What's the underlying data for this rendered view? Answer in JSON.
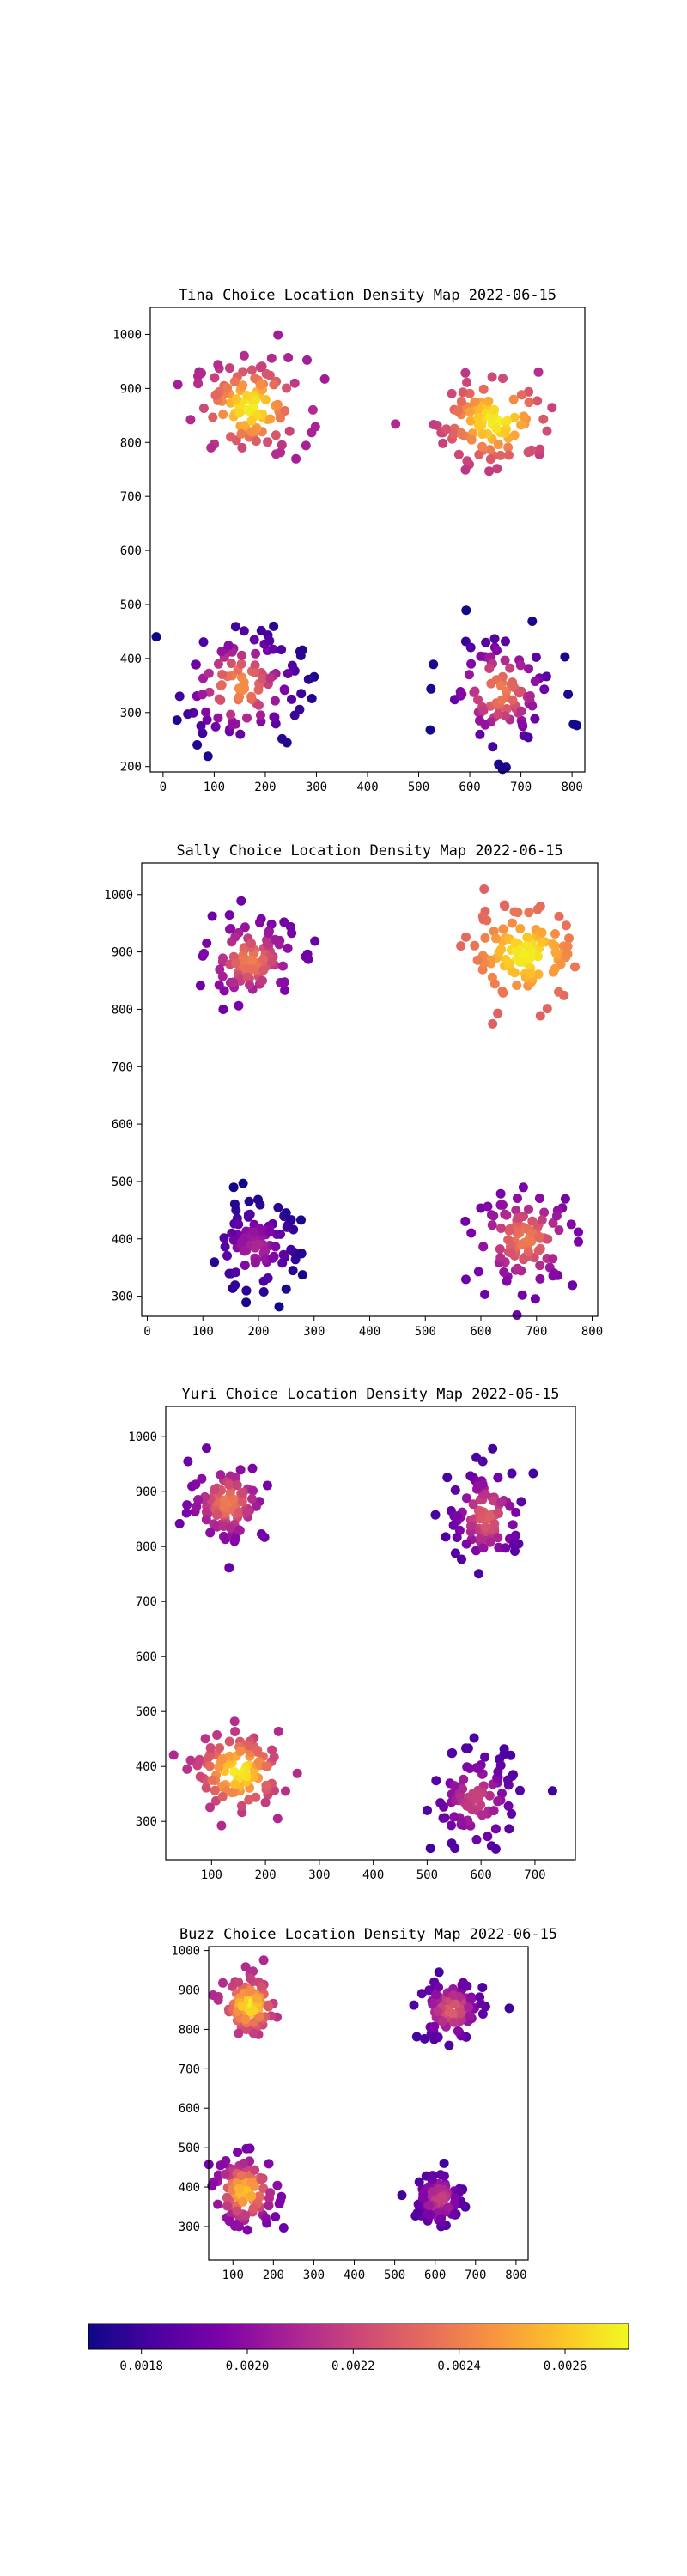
{
  "colorbar": {
    "colormap": "plasma",
    "range": [
      0.0017,
      0.00272
    ],
    "ticks": [
      0.0018,
      0.002,
      0.0022,
      0.0024,
      0.0026
    ],
    "tick_labels": [
      "0.0018",
      "0.0020",
      "0.0022",
      "0.0024",
      "0.0026"
    ]
  },
  "chart_data": [
    {
      "type": "scatter",
      "title": "Tina Choice Location Density Map 2022-06-15",
      "xlabel": "",
      "ylabel": "",
      "xlim": [
        -25,
        825
      ],
      "ylim": [
        190,
        1050
      ],
      "xticks": [
        0,
        100,
        200,
        300,
        400,
        500,
        600,
        700,
        800
      ],
      "yticks": [
        200,
        300,
        400,
        500,
        600,
        700,
        800,
        900,
        1000
      ],
      "color_by": "density",
      "clusters": [
        {
          "cx": 170,
          "cy": 865,
          "sx": 55,
          "sy": 45,
          "n": 110,
          "density": [
            0.00205,
            0.0027
          ]
        },
        {
          "cx": 650,
          "cy": 840,
          "sx": 60,
          "sy": 45,
          "n": 100,
          "density": [
            0.0021,
            0.0027
          ]
        },
        {
          "cx": 150,
          "cy": 350,
          "sx": 60,
          "sy": 55,
          "n": 110,
          "density": [
            0.0017,
            0.00245
          ]
        },
        {
          "cx": 660,
          "cy": 340,
          "sx": 55,
          "sy": 55,
          "n": 95,
          "density": [
            0.0017,
            0.0024
          ]
        }
      ]
    },
    {
      "type": "scatter",
      "title": "Sally Choice Location Density Map 2022-06-15",
      "xlabel": "",
      "ylabel": "",
      "xlim": [
        -10,
        810
      ],
      "ylim": [
        265,
        1055
      ],
      "xticks": [
        0,
        100,
        200,
        300,
        400,
        500,
        600,
        700,
        800
      ],
      "yticks": [
        300,
        400,
        500,
        600,
        700,
        800,
        900,
        1000
      ],
      "color_by": "density",
      "clusters": [
        {
          "cx": 185,
          "cy": 885,
          "sx": 40,
          "sy": 35,
          "n": 110,
          "density": [
            0.0019,
            0.0024
          ]
        },
        {
          "cx": 680,
          "cy": 895,
          "sx": 50,
          "sy": 40,
          "n": 110,
          "density": [
            0.0023,
            0.0027
          ]
        },
        {
          "cx": 195,
          "cy": 385,
          "sx": 40,
          "sy": 40,
          "n": 95,
          "density": [
            0.0017,
            0.0021
          ]
        },
        {
          "cx": 680,
          "cy": 400,
          "sx": 45,
          "sy": 40,
          "n": 100,
          "density": [
            0.0019,
            0.0024
          ]
        }
      ]
    },
    {
      "type": "scatter",
      "title": "Yuri Choice Location Density Map 2022-06-15",
      "xlabel": "",
      "ylabel": "",
      "xlim": [
        15,
        775
      ],
      "ylim": [
        230,
        1055
      ],
      "xticks": [
        100,
        200,
        300,
        400,
        500,
        600,
        700
      ],
      "yticks": [
        300,
        400,
        500,
        600,
        700,
        800,
        900,
        1000
      ],
      "color_by": "density",
      "clusters": [
        {
          "cx": 130,
          "cy": 880,
          "sx": 35,
          "sy": 35,
          "n": 100,
          "density": [
            0.0019,
            0.0024
          ]
        },
        {
          "cx": 610,
          "cy": 855,
          "sx": 35,
          "sy": 45,
          "n": 100,
          "density": [
            0.0018,
            0.0023
          ]
        },
        {
          "cx": 150,
          "cy": 390,
          "sx": 40,
          "sy": 35,
          "n": 110,
          "density": [
            0.0021,
            0.0027
          ]
        },
        {
          "cx": 590,
          "cy": 340,
          "sx": 40,
          "sy": 45,
          "n": 100,
          "density": [
            0.0018,
            0.0022
          ]
        }
      ]
    },
    {
      "type": "scatter",
      "title": "Buzz Choice Location Density Map 2022-06-15",
      "xlabel": "",
      "ylabel": "",
      "xlim": [
        40,
        830
      ],
      "ylim": [
        215,
        1010
      ],
      "xticks": [
        100,
        200,
        300,
        400,
        500,
        600,
        700,
        800
      ],
      "yticks": [
        300,
        400,
        500,
        600,
        700,
        800,
        900,
        1000
      ],
      "color_by": "density",
      "clusters": [
        {
          "cx": 140,
          "cy": 860,
          "sx": 30,
          "sy": 35,
          "n": 110,
          "density": [
            0.0021,
            0.0027
          ]
        },
        {
          "cx": 640,
          "cy": 850,
          "sx": 40,
          "sy": 40,
          "n": 100,
          "density": [
            0.0018,
            0.0023
          ]
        },
        {
          "cx": 130,
          "cy": 390,
          "sx": 40,
          "sy": 45,
          "n": 110,
          "density": [
            0.0019,
            0.0026
          ]
        },
        {
          "cx": 610,
          "cy": 370,
          "sx": 30,
          "sy": 35,
          "n": 95,
          "density": [
            0.0018,
            0.0022
          ]
        }
      ]
    }
  ]
}
